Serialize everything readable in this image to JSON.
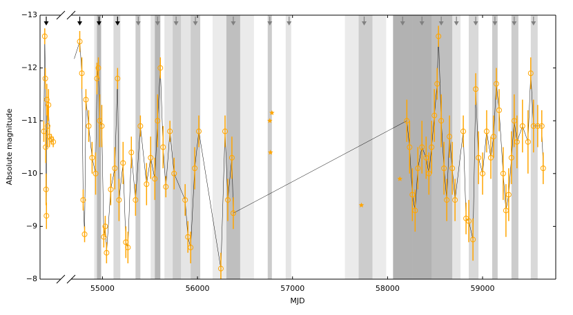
{
  "chart_data": {
    "type": "scatter",
    "xlabel": "MJD",
    "ylabel": "Absolute magnitude",
    "y_inverted": true,
    "ylim": [
      -13,
      -8
    ],
    "yticks": [
      {
        "value": -13,
        "label": "−13"
      },
      {
        "value": -12,
        "label": "−12"
      },
      {
        "value": -11,
        "label": "−11"
      },
      {
        "value": -10,
        "label": "−10"
      },
      {
        "value": -9,
        "label": "−9"
      },
      {
        "value": -8,
        "label": "−8"
      }
    ],
    "panels": [
      {
        "xlim": [
          54330,
          54440
        ],
        "xticks": []
      },
      {
        "xlim": [
          54670,
          59770
        ],
        "xticks": [
          55000,
          56000,
          57000,
          58000,
          59000
        ]
      }
    ],
    "shaded_regions": [
      {
        "start": 54913,
        "end": 54986,
        "opacity": 0.1
      },
      {
        "start": 54942,
        "end": 54986,
        "opacity": 0.2
      },
      {
        "start": 55116,
        "end": 55188,
        "opacity": 0.15
      },
      {
        "start": 55348,
        "end": 55399,
        "opacity": 0.2
      },
      {
        "start": 55507,
        "end": 55609,
        "opacity": 0.1
      },
      {
        "start": 55551,
        "end": 55609,
        "opacity": 0.2
      },
      {
        "start": 55652,
        "end": 55739,
        "opacity": 0.1
      },
      {
        "start": 55739,
        "end": 55826,
        "opacity": 0.2
      },
      {
        "start": 55826,
        "end": 55928,
        "opacity": 0.1
      },
      {
        "start": 55928,
        "end": 56029,
        "opacity": 0.2
      },
      {
        "start": 56159,
        "end": 56304,
        "opacity": 0.08
      },
      {
        "start": 56304,
        "end": 56449,
        "opacity": 0.25
      },
      {
        "start": 56449,
        "end": 56594,
        "opacity": 0.08
      },
      {
        "start": 56739,
        "end": 56783,
        "opacity": 0.2
      },
      {
        "start": 56928,
        "end": 56986,
        "opacity": 0.1
      },
      {
        "start": 57551,
        "end": 57696,
        "opacity": 0.08
      },
      {
        "start": 57696,
        "end": 57841,
        "opacity": 0.2
      },
      {
        "start": 57841,
        "end": 57986,
        "opacity": 0.08
      },
      {
        "start": 58058,
        "end": 58261,
        "opacity": 0.3
      },
      {
        "start": 58261,
        "end": 58464,
        "opacity": 0.3
      },
      {
        "start": 58464,
        "end": 58681,
        "opacity": 0.25
      },
      {
        "start": 58681,
        "end": 58768,
        "opacity": 0.1
      },
      {
        "start": 58855,
        "end": 58957,
        "opacity": 0.15
      },
      {
        "start": 59101,
        "end": 59159,
        "opacity": 0.2
      },
      {
        "start": 59304,
        "end": 59377,
        "opacity": 0.2
      },
      {
        "start": 59507,
        "end": 59580,
        "opacity": 0.15
      }
    ],
    "arrows": [
      {
        "color": "#000000",
        "x": [
          54363,
          54761,
          54964,
          55159
        ]
      },
      {
        "color": "#808080",
        "x": [
          55377,
          55580,
          55775,
          55978,
          56377,
          56761,
          56964,
          57754,
          58159,
          58362,
          58565,
          58725,
          58928,
          59130,
          59333,
          59536
        ]
      }
    ],
    "series": [
      {
        "marker": "circle",
        "color": "#ffa500",
        "line_color": "#000000",
        "x": [
          54350,
          54355,
          54358,
          54360,
          54362,
          54364,
          54366,
          54370,
          54375,
          54380,
          54390,
          54400,
          54761,
          54783,
          54797,
          54812,
          54826,
          54855,
          54891,
          54928,
          54942,
          54957,
          54971,
          54993,
          55014,
          55029,
          55043,
          55087,
          55130,
          55159,
          55174,
          55217,
          55246,
          55268,
          55304,
          55348,
          55399,
          55464,
          55507,
          55551,
          55580,
          55609,
          55638,
          55667,
          55710,
          55754,
          55870,
          55899,
          55928,
          55971,
          56014,
          56246,
          56290,
          56319,
          56362,
          56377,
          58203,
          58232,
          58261,
          58290,
          58319,
          58362,
          58406,
          58435,
          58464,
          58493,
          58522,
          58536,
          58565,
          58594,
          58623,
          58652,
          58681,
          58710,
          58797,
          58826,
          58855,
          58899,
          58928,
          58957,
          59000,
          59043,
          59087,
          59116,
          59145,
          59174,
          59217,
          59246,
          59275,
          59304,
          59333,
          59362,
          59420,
          59478,
          59507,
          59536,
          59580,
          59623,
          59638
        ],
        "values": [
          -10.8,
          -12.6,
          -11.8,
          -10.5,
          -9.7,
          -9.2,
          -11.4,
          -10.9,
          -11.3,
          -10.7,
          -10.65,
          -10.6,
          -12.5,
          -11.9,
          -9.5,
          -8.85,
          -11.4,
          -10.9,
          -10.3,
          -10.0,
          -11.8,
          -12.0,
          -11.0,
          -10.9,
          -8.8,
          -9.0,
          -8.5,
          -9.7,
          -10.1,
          -11.8,
          -9.5,
          -10.2,
          -8.7,
          -8.6,
          -10.4,
          -9.5,
          -10.9,
          -9.8,
          -10.3,
          -9.9,
          -11.0,
          -12.0,
          -10.5,
          -9.75,
          -10.8,
          -10.0,
          -9.5,
          -8.8,
          -8.6,
          -10.1,
          -10.8,
          -8.2,
          -10.8,
          -9.5,
          -10.3,
          -9.25,
          -11.0,
          -10.5,
          -9.6,
          -9.3,
          -10.1,
          -10.5,
          -10.3,
          -10.0,
          -10.5,
          -11.1,
          -11.7,
          -12.6,
          -11.0,
          -10.1,
          -9.5,
          -10.7,
          -10.1,
          -9.5,
          -10.8,
          -9.15,
          -9.1,
          -8.75,
          -11.6,
          -10.3,
          -10.0,
          -10.8,
          -10.3,
          -10.7,
          -11.7,
          -11.2,
          -10.0,
          -9.3,
          -9.6,
          -10.3,
          -11.0,
          -10.6,
          -10.9,
          -10.6,
          -11.9,
          -10.9,
          -10.9,
          -10.9,
          -10.1
        ],
        "errors": [
          0.2,
          0.15,
          0.2,
          0.3,
          0.3,
          0.25,
          0.3,
          0.4,
          0.3,
          0.2,
          0.1,
          0.1,
          0.2,
          0.3,
          0.2,
          0.15,
          0.2,
          0.3,
          0.3,
          0.4,
          0.3,
          0.2,
          0.5,
          0.4,
          0.2,
          0.2,
          0.2,
          0.3,
          0.4,
          0.2,
          0.4,
          0.4,
          0.3,
          0.3,
          0.3,
          0.3,
          0.2,
          0.4,
          0.4,
          0.4,
          0.5,
          0.2,
          0.4,
          0.2,
          0.2,
          0.3,
          0.3,
          0.3,
          0.3,
          0.4,
          0.3,
          0.3,
          0.3,
          0.4,
          0.4,
          0.3,
          0.4,
          0.5,
          0.5,
          0.4,
          0.4,
          0.5,
          0.4,
          0.4,
          0.5,
          0.5,
          0.3,
          0.2,
          0.5,
          0.5,
          0.4,
          0.4,
          0.5,
          0.4,
          0.3,
          0.3,
          0.4,
          0.4,
          0.3,
          0.5,
          0.4,
          0.4,
          0.4,
          0.4,
          0.3,
          0.4,
          0.5,
          0.5,
          0.5,
          0.5,
          0.5,
          0.5,
          0.5,
          0.6,
          0.3,
          0.5,
          0.4,
          0.3,
          0.3
        ]
      },
      {
        "marker": "star",
        "color": "#ffa500",
        "x": [
          56761,
          56768,
          56783,
          57725,
          58130
        ],
        "values": [
          -11.0,
          -10.4,
          -11.15,
          -9.4,
          -9.9
        ]
      }
    ]
  }
}
